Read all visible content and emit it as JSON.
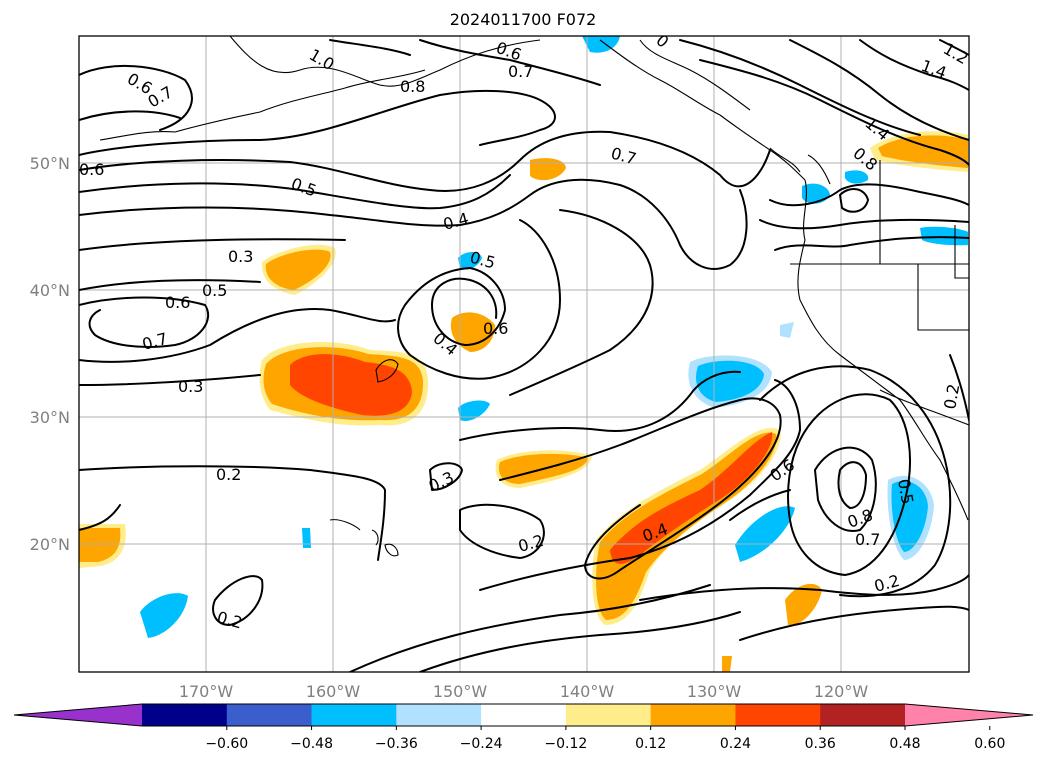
{
  "title": "2024011700 F072",
  "lon_ticks": [
    "170°W",
    "160°W",
    "150°W",
    "140°W",
    "130°W",
    "120°W"
  ],
  "lat_ticks": [
    "50°N",
    "40°N",
    "30°N",
    "20°N"
  ],
  "colorbar": {
    "ticks": [
      "−0.60",
      "−0.48",
      "−0.36",
      "−0.24",
      "−0.12",
      "0.12",
      "0.24",
      "0.36",
      "0.48",
      "0.60"
    ],
    "colors": [
      "#9932cc",
      "#00008b",
      "#3a5fcd",
      "#00bfff",
      "#b0e2ff",
      "#ffffff",
      "#ffec8b",
      "#ffa500",
      "#ff4500",
      "#b22222",
      "#ff82ab"
    ]
  },
  "contour_labels": [
    {
      "text": "1.0",
      "key": "c1"
    },
    {
      "text": "0.6",
      "key": "c2"
    },
    {
      "text": "0.7",
      "key": "c3"
    },
    {
      "text": "0.8",
      "key": "c4"
    },
    {
      "text": "0.6",
      "key": "c5"
    },
    {
      "text": "0.7",
      "key": "c6"
    },
    {
      "text": "0.6",
      "key": "c7"
    },
    {
      "text": "0.5",
      "key": "c8"
    },
    {
      "text": "0.4",
      "key": "c9"
    },
    {
      "text": "0.7",
      "key": "c10"
    },
    {
      "text": "1.4",
      "key": "c11"
    },
    {
      "text": "1.2",
      "key": "c12"
    },
    {
      "text": "1.4",
      "key": "c13"
    },
    {
      "text": "0.8",
      "key": "c14"
    },
    {
      "text": "0.3",
      "key": "c15"
    },
    {
      "text": "0.5",
      "key": "c16"
    },
    {
      "text": "0.6",
      "key": "c17"
    },
    {
      "text": "0.5",
      "key": "c18"
    },
    {
      "text": "0.7",
      "key": "c19"
    },
    {
      "text": "0.6",
      "key": "c20"
    },
    {
      "text": "0.4",
      "key": "c21"
    },
    {
      "text": "0.3",
      "key": "c22"
    },
    {
      "text": "0.2",
      "key": "c23"
    },
    {
      "text": "0.3",
      "key": "c24"
    },
    {
      "text": "0.4",
      "key": "c25"
    },
    {
      "text": "0.2",
      "key": "c26"
    },
    {
      "text": "0.6",
      "key": "c27"
    },
    {
      "text": "0.5",
      "key": "c28"
    },
    {
      "text": "0.8",
      "key": "c29"
    },
    {
      "text": "0.7",
      "key": "c30"
    },
    {
      "text": "0.2",
      "key": "c31"
    },
    {
      "text": "0.2",
      "key": "c32"
    },
    {
      "text": "0.2",
      "key": "c33"
    },
    {
      "text": "0",
      "key": "c34"
    }
  ]
}
